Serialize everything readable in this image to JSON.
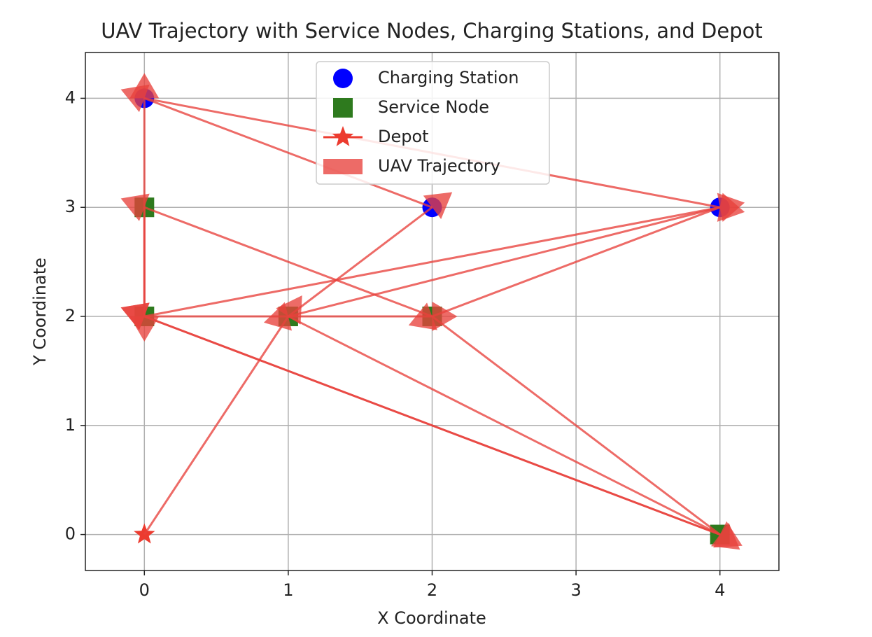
{
  "chart_data": {
    "type": "scatter",
    "title": "UAV Trajectory with Service Nodes, Charging Stations, and Depot",
    "x_label": "X Coordinate",
    "y_label": "Y Coordinate",
    "xlim": [
      -0.41,
      4.41
    ],
    "ylim": [
      -0.33,
      4.42
    ],
    "xticks": [
      0,
      1,
      2,
      3,
      4
    ],
    "yticks": [
      0,
      1,
      2,
      3,
      4
    ],
    "grid": true,
    "legend": "upper center",
    "series": [
      {
        "name": "Charging Station",
        "color": "#0000ff",
        "marker": "circle",
        "x": [
          0,
          2,
          4
        ],
        "y": [
          4,
          3,
          3
        ]
      },
      {
        "name": "Service Node",
        "color": "#2e7a1e",
        "marker": "square",
        "x": [
          0,
          0,
          1,
          2,
          4
        ],
        "y": [
          3,
          2,
          2,
          2,
          0
        ]
      },
      {
        "name": "Depot",
        "color": "#ec3b2f",
        "marker": "star",
        "x": [
          0
        ],
        "y": [
          0
        ]
      },
      {
        "name": "UAV Trajectory",
        "color": "#e8413c",
        "marker": "arrow",
        "x": [
          0,
          1,
          2,
          0,
          4,
          2,
          0,
          0,
          4,
          1,
          4,
          0,
          2,
          4,
          0,
          0
        ],
        "y": [
          0,
          2,
          3,
          4,
          3,
          2,
          3,
          2,
          3,
          2,
          0,
          2,
          2,
          0,
          2,
          4
        ]
      }
    ]
  }
}
